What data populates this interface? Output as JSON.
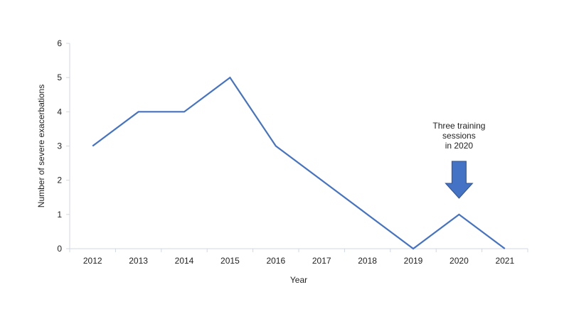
{
  "chart_data": {
    "type": "line",
    "title": "",
    "xlabel": "Year",
    "ylabel": "Number of severe exacerbations",
    "ylim": [
      0,
      6
    ],
    "yticks": [
      0,
      1,
      2,
      3,
      4,
      5,
      6
    ],
    "grid": false,
    "legend": "none",
    "categories": [
      "2012",
      "2013",
      "2014",
      "2015",
      "2016",
      "2017",
      "2018",
      "2019",
      "2020",
      "2021"
    ],
    "series": [
      {
        "values": [
          3,
          4,
          4,
          5,
          3,
          2,
          1,
          0,
          1,
          0
        ]
      }
    ],
    "annotations": [
      {
        "lines": [
          "Three training",
          "sessions",
          "in 2020"
        ],
        "target_category": "2020",
        "arrow": "down"
      }
    ],
    "colors": {
      "line": "#4472c4",
      "axis": "#d0d7e5",
      "arrow_fill": "#4472c4",
      "arrow_stroke": "#2f528f"
    }
  }
}
